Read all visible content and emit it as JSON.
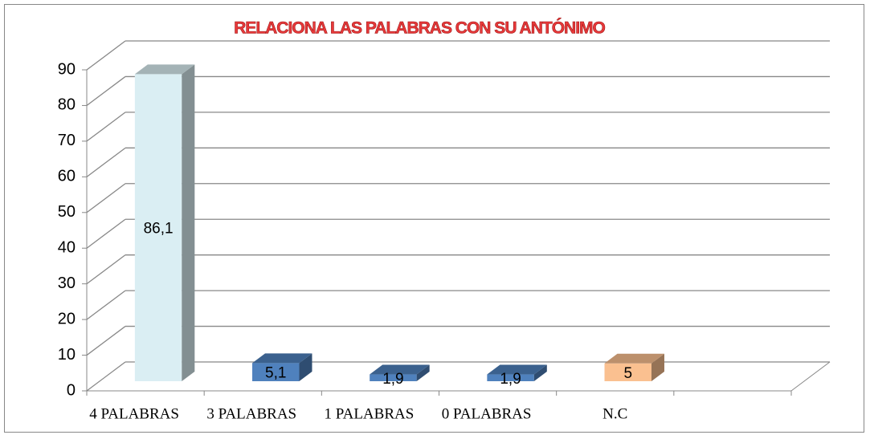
{
  "chart_data": {
    "type": "bar3d",
    "title": "RELACIONA LAS PALABRAS CON SU ANTÓNIMO",
    "categories": [
      "4 PALABRAS",
      "3 PALABRAS",
      "1 PALABRAS",
      "0 PALABRAS",
      "N.C"
    ],
    "values": [
      86.1,
      5.1,
      1.9,
      1.9,
      5
    ],
    "value_labels": [
      "86,1",
      "5,1",
      "1,9",
      "1,9",
      "5"
    ],
    "colors": [
      "#daeef3",
      "#4f81bd",
      "#4f81bd",
      "#4f81bd",
      "#fac090"
    ],
    "ylim": [
      0,
      90
    ],
    "yticks": [
      0,
      10,
      20,
      30,
      40,
      50,
      60,
      70,
      80,
      90
    ],
    "grid": true
  }
}
